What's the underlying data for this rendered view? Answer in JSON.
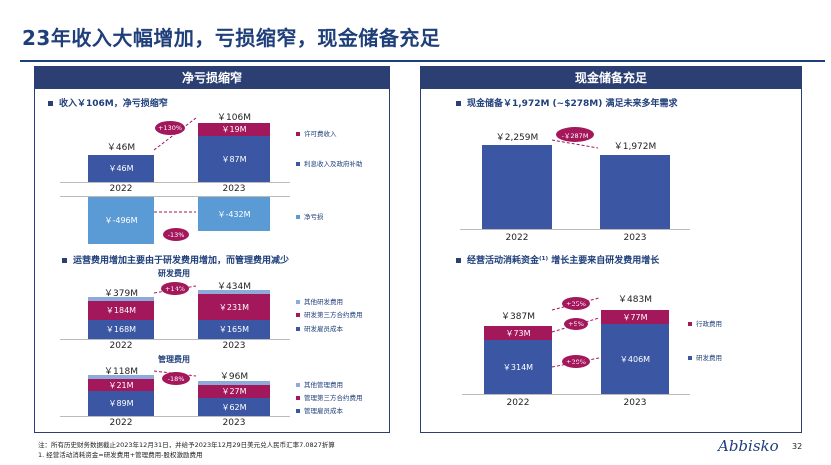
{
  "title": "23年收入大幅增加，亏损缩窄，现金储备充足",
  "left_panel": {
    "header": "净亏损缩窄",
    "bullet1": "收入￥106M，净亏损缩窄",
    "revenue": {
      "total_2022": "￥46M",
      "total_2023": "￥106M",
      "interest_2022": "￥46M",
      "interest_2023": "￥87M",
      "license_2023": "￥19M",
      "growth": "+130%",
      "legend_license": "许可费收入",
      "legend_interest": "利息收入及政府补助"
    },
    "net_loss": {
      "v2022": "￥-496M",
      "v2023": "￥-432M",
      "change": "-13%",
      "legend": "净亏损"
    },
    "years": [
      "2022",
      "2023"
    ],
    "bullet2": "运营费用增加主要由于研发费用增加，而管理费用减少",
    "rd": {
      "title": "研发费用",
      "total_2022": "￥379M",
      "total_2023": "￥434M",
      "third_party_2022": "￥184M",
      "third_party_2023": "￥231M",
      "staff_2022": "￥168M",
      "staff_2023": "￥165M",
      "growth": "+14%",
      "legend_other": "其他研发费用",
      "legend_third_party": "研发第三方合约费用",
      "legend_staff": "研发雇员成本"
    },
    "admin": {
      "title": "管理费用",
      "total_2022": "￥118M",
      "total_2023": "￥96M",
      "third_party_2022": "￥21M",
      "third_party_2023": "￥27M",
      "staff_2022": "￥89M",
      "staff_2023": "￥62M",
      "change": "-18%",
      "legend_other": "其他管理费用",
      "legend_third_party": "管理第三方合约费用",
      "legend_staff": "管理雇员成本"
    }
  },
  "right_panel": {
    "header": "现金储备充足",
    "bullet1": "现金储备￥1,972M (~$278M) 满足未来多年需求",
    "cash": {
      "v2022": "￥2,259M",
      "v2023": "￥1,972M",
      "change": "-￥287M"
    },
    "years": [
      "2022",
      "2023"
    ],
    "bullet2": "经营活动消耗资金⁽¹⁾ 增长主要来自研发费用增长",
    "burn": {
      "total_2022": "￥387M",
      "total_2023": "￥483M",
      "admin_2022": "￥73M",
      "admin_2023": "￥77M",
      "rd_2022": "￥314M",
      "rd_2023": "￥406M",
      "growth_total": "+25%",
      "growth_admin": "+5%",
      "growth_rd": "+29%",
      "legend_admin": "行政费用",
      "legend_rd": "研发费用"
    }
  },
  "footnote1": "注：所有历史财务数据截止2023年12月31日，并给予2023年12月29日美元兑人民币汇率7.0827折算",
  "footnote2": "1. 经营活动消耗资金=研发费用+管理费用-股权激励费用",
  "logo": "Abbisko",
  "page": "32",
  "colors": {
    "navy": "#2b3f73",
    "blue": "#3b57a4",
    "magenta": "#a3175b",
    "light_blue": "#5b9bd5"
  }
}
